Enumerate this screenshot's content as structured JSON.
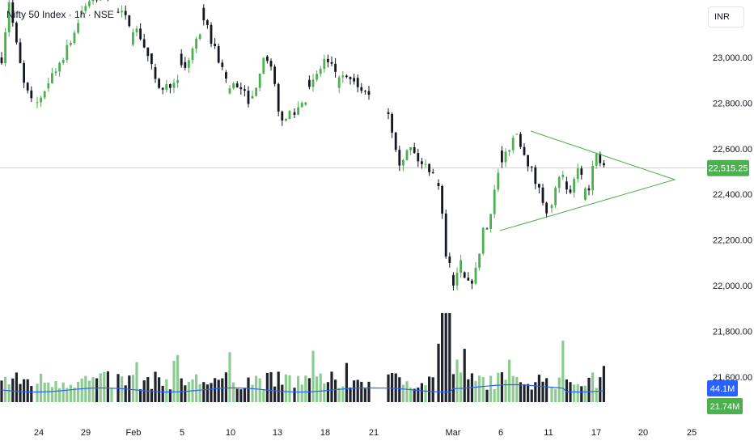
{
  "chart_data": {
    "type": "candlestick",
    "title": "Nifty 50 Index · 1h · NSE",
    "currency": "INR",
    "y_ticks": [
      "23,000.00",
      "22,800.00",
      "22,600.00",
      "22,400.00",
      "22,200.00",
      "22,000.00",
      "21,800.00",
      "21,600.00"
    ],
    "y_tick_values": [
      23000,
      22800,
      22600,
      22400,
      22200,
      22000,
      21800,
      21600
    ],
    "ylim": [
      21420,
      23250
    ],
    "x_ticks": [
      "24",
      "29",
      "Feb",
      "5",
      "10",
      "13",
      "18",
      "21",
      "Mar",
      "6",
      "11",
      "17",
      "20",
      "25"
    ],
    "last_price": "22,515.25",
    "last_price_value": 22515.25,
    "volume_label": "21.74M",
    "volume_ma_label": "44.1M",
    "pattern": {
      "type": "symmetrical triangle",
      "upper_line": [
        {
          "date": "Mar 10",
          "value": 22690
        },
        {
          "date": "Mar 22",
          "value": 22465
        }
      ],
      "lower_line": [
        {
          "date": "Mar 5",
          "value": 22250
        },
        {
          "date": "Mar 22",
          "value": 22465
        }
      ]
    },
    "segments": [
      {
        "period": "Jan 20 - Jan 23",
        "close_path": [
          23000,
          23250,
          23050,
          22880,
          22800
        ]
      },
      {
        "period": "Jan 24 - Feb 3",
        "close_path": [
          22800,
          23000,
          23230,
          23300
        ]
      },
      {
        "period": "Feb 4 - Feb 11",
        "close_path": [
          23200,
          23100,
          22850,
          22950,
          23150,
          22900,
          22820
        ]
      },
      {
        "period": "Feb 12 - Feb 17",
        "close_path": [
          22820,
          22950,
          23000,
          22870,
          22700,
          22760
        ]
      },
      {
        "period": "Feb 18 - Feb 21",
        "close_path": [
          22760,
          22850,
          22990,
          22920,
          22880,
          22850
        ]
      },
      {
        "period": "Feb 24 - Feb 27",
        "close_path": [
          22760,
          22550,
          22600,
          22530,
          22510
        ]
      },
      {
        "period": "Feb 28 - Mar 5",
        "close_path": [
          22450,
          22150,
          22020,
          22100,
          22000,
          22060,
          22250
        ]
      },
      {
        "period": "Mar 6 - Mar 11",
        "close_path": [
          22250,
          22480,
          22590,
          22670,
          22560,
          22440,
          22340
        ]
      },
      {
        "period": "Mar 12 - Mar 18",
        "close_path": [
          22340,
          22510,
          22360,
          22530,
          22390,
          22570,
          22515
        ]
      }
    ]
  }
}
